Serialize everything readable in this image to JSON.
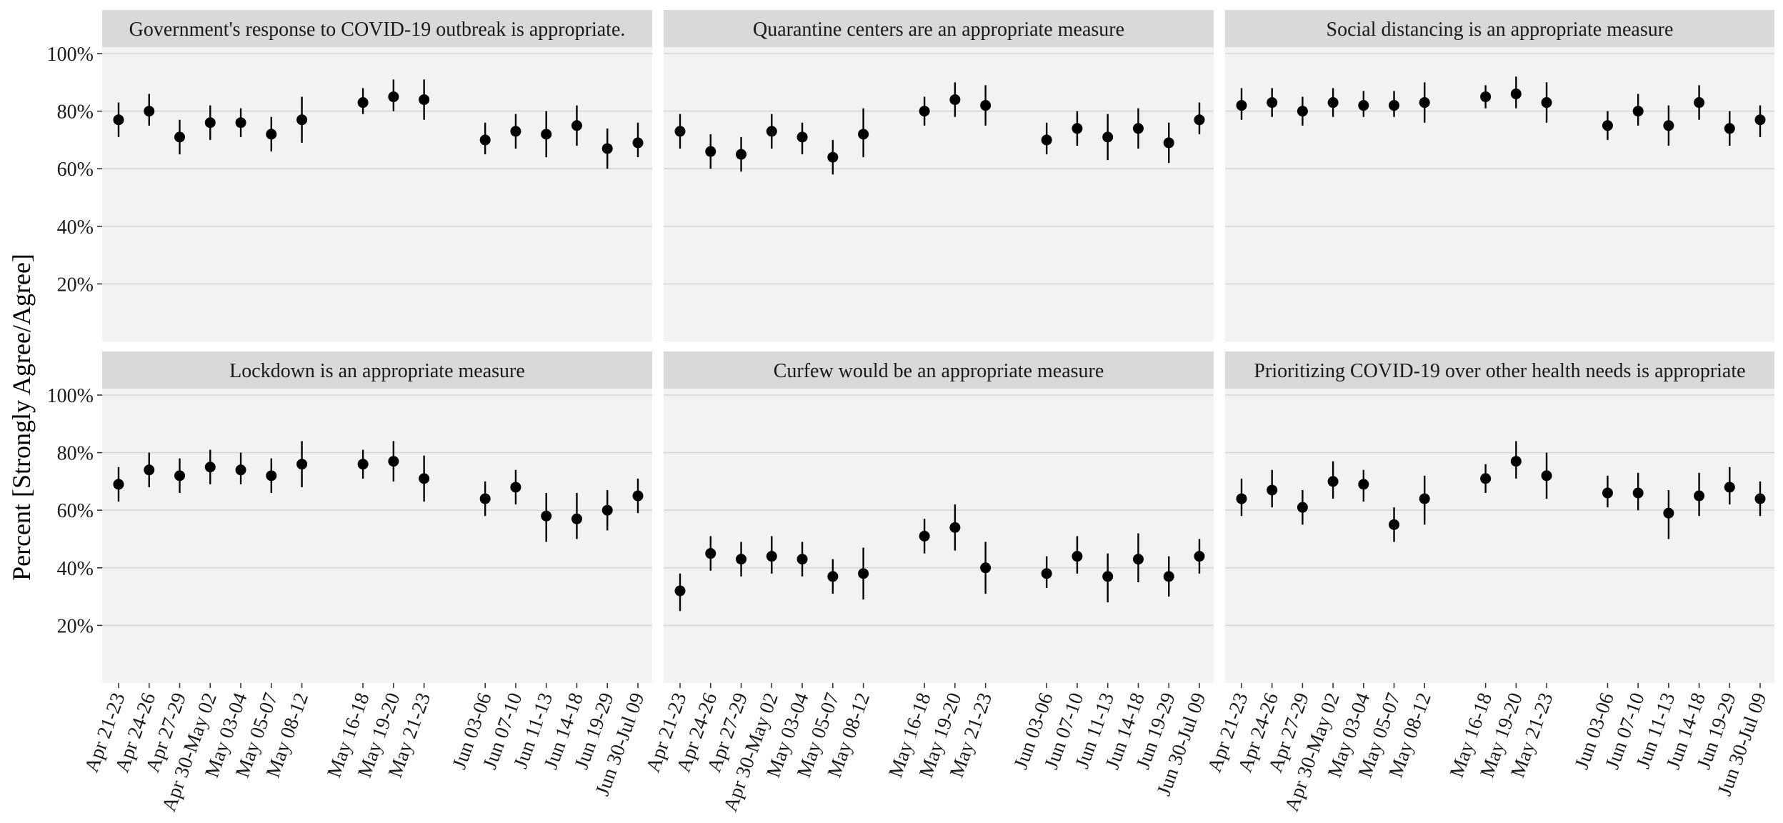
{
  "chart_data": {
    "type": "scatter",
    "subtype": "point-range faceted",
    "ylabel": "Percent [Strongly Agree/Agree]",
    "xlabel": "",
    "ylim": [
      0,
      100
    ],
    "y_ticks": [
      "20%",
      "40%",
      "60%",
      "80%",
      "100%"
    ],
    "y_tick_values": [
      20,
      40,
      60,
      80,
      100
    ],
    "categories": [
      "Apr 21-23",
      "Apr 24-26",
      "Apr 27-29",
      "Apr 30-May 02",
      "May 03-04",
      "May 05-07",
      "May 08-12",
      "May 16-18",
      "May 19-20",
      "May 21-23",
      "Jun 03-06",
      "Jun 07-10",
      "Jun 11-13",
      "Jun 14-18",
      "Jun 19-29",
      "Jun 30-Jul 09"
    ],
    "grid": true,
    "colors": {
      "panel": "#f2f2f2",
      "strip": "#d9d9d9",
      "grid": "#d6d6d6",
      "point": "#000000"
    },
    "panels": [
      {
        "title": "Government's response to COVID-19 outbreak is appropriate.",
        "values": [
          77,
          80,
          71,
          76,
          76,
          72,
          77,
          83,
          85,
          84,
          70,
          73,
          72,
          75,
          67,
          69
        ],
        "lower": [
          71,
          75,
          65,
          70,
          71,
          66,
          69,
          79,
          80,
          77,
          65,
          67,
          64,
          68,
          60,
          64
        ],
        "upper": [
          83,
          86,
          77,
          82,
          81,
          78,
          85,
          88,
          91,
          91,
          76,
          79,
          80,
          82,
          74,
          76
        ]
      },
      {
        "title": "Quarantine centers are an appropriate measure",
        "values": [
          73,
          66,
          65,
          73,
          71,
          64,
          72,
          80,
          84,
          82,
          70,
          74,
          71,
          74,
          69,
          77
        ],
        "lower": [
          67,
          60,
          59,
          67,
          65,
          58,
          64,
          75,
          78,
          75,
          65,
          68,
          63,
          67,
          62,
          72
        ],
        "upper": [
          79,
          72,
          71,
          79,
          76,
          70,
          81,
          85,
          90,
          89,
          76,
          80,
          79,
          81,
          76,
          83
        ]
      },
      {
        "title": "Social distancing is an appropriate measure",
        "values": [
          82,
          83,
          80,
          83,
          82,
          82,
          83,
          85,
          86,
          83,
          75,
          80,
          75,
          83,
          74,
          77
        ],
        "lower": [
          77,
          78,
          75,
          78,
          78,
          78,
          76,
          81,
          81,
          76,
          70,
          75,
          68,
          77,
          68,
          71
        ],
        "upper": [
          88,
          88,
          85,
          88,
          87,
          87,
          90,
          89,
          92,
          90,
          80,
          86,
          82,
          89,
          80,
          82
        ]
      },
      {
        "title": "Lockdown is an appropriate measure",
        "values": [
          69,
          74,
          72,
          75,
          74,
          72,
          76,
          76,
          77,
          71,
          64,
          68,
          58,
          57,
          60,
          65
        ],
        "lower": [
          63,
          68,
          66,
          69,
          69,
          66,
          68,
          71,
          70,
          63,
          58,
          62,
          49,
          50,
          53,
          59
        ],
        "upper": [
          75,
          80,
          78,
          81,
          80,
          78,
          84,
          81,
          84,
          79,
          70,
          74,
          66,
          66,
          67,
          71
        ]
      },
      {
        "title": "Curfew would be an appropriate measure",
        "values": [
          32,
          45,
          43,
          44,
          43,
          37,
          38,
          51,
          54,
          40,
          38,
          44,
          37,
          43,
          37,
          44
        ],
        "lower": [
          25,
          39,
          37,
          38,
          37,
          31,
          29,
          45,
          46,
          31,
          33,
          38,
          28,
          35,
          30,
          38
        ],
        "upper": [
          38,
          51,
          49,
          51,
          49,
          43,
          47,
          57,
          62,
          49,
          44,
          51,
          45,
          52,
          44,
          50
        ]
      },
      {
        "title": "Prioritizing COVID-19 over other health needs is appropriate",
        "values": [
          64,
          67,
          61,
          70,
          69,
          55,
          64,
          71,
          77,
          72,
          66,
          66,
          59,
          65,
          68,
          64
        ],
        "lower": [
          58,
          61,
          55,
          64,
          63,
          49,
          55,
          66,
          71,
          64,
          61,
          60,
          50,
          58,
          62,
          58
        ],
        "upper": [
          71,
          74,
          67,
          77,
          74,
          61,
          72,
          76,
          84,
          80,
          72,
          73,
          67,
          73,
          75,
          70
        ]
      }
    ]
  }
}
